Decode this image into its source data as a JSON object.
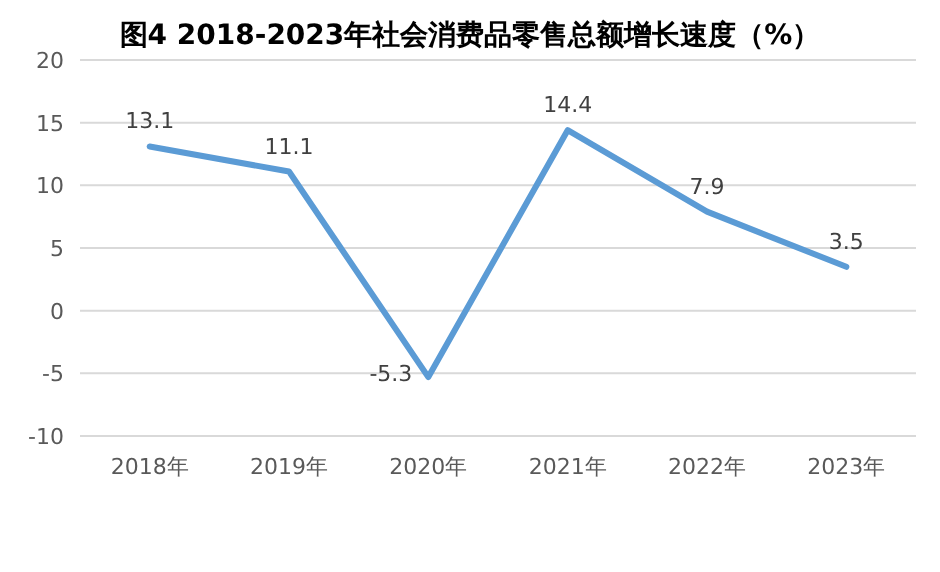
{
  "chart_data": {
    "type": "line",
    "title": "图4  2018-2023年社会消费品零售总额增长速度（%）",
    "categories": [
      "2018年",
      "2019年",
      "2020年",
      "2021年",
      "2022年",
      "2023年"
    ],
    "series": [
      {
        "color": "#5b9bd5",
        "values": [
          13.1,
          11.1,
          -5.3,
          14.4,
          7.9,
          3.5
        ]
      }
    ],
    "ylim": [
      -10,
      20
    ],
    "yticks": [
      -10,
      -5,
      0,
      5,
      10,
      15,
      20
    ],
    "grid": "y",
    "data_labels": true,
    "marker": "none",
    "line_style": "solid"
  }
}
